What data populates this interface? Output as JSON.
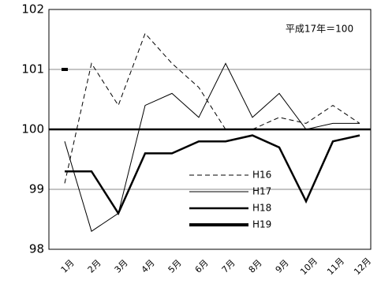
{
  "chart_data": {
    "type": "line",
    "annotation": "平成17年＝100",
    "categories": [
      "1月",
      "2月",
      "3月",
      "4月",
      "5月",
      "6月",
      "7月",
      "8月",
      "9月",
      "10月",
      "11月",
      "12月"
    ],
    "series": [
      {
        "name": "H16",
        "color": "#000000",
        "line_width": 1,
        "dashed": true,
        "values": [
          99.1,
          101.1,
          100.4,
          101.6,
          101.1,
          100.7,
          100.0,
          100.0,
          100.2,
          100.1,
          100.4,
          100.1
        ]
      },
      {
        "name": "H17",
        "color": "#000000",
        "line_width": 1,
        "dashed": false,
        "values": [
          99.8,
          98.3,
          98.6,
          100.4,
          100.6,
          100.2,
          101.1,
          100.2,
          100.6,
          100.0,
          100.1,
          100.1
        ]
      },
      {
        "name": "H18",
        "color": "#000000",
        "line_width": 2.5,
        "dashed": false,
        "values": [
          99.3,
          99.3,
          98.6,
          99.6,
          99.6,
          99.8,
          99.8,
          99.9,
          99.7,
          98.8,
          99.8,
          99.9
        ]
      },
      {
        "name": "H19",
        "color": "#000000",
        "line_width": 4,
        "dashed": false,
        "values": [
          101.0,
          null,
          null,
          null,
          null,
          null,
          null,
          null,
          null,
          null,
          null,
          null
        ]
      }
    ],
    "ylim": [
      98,
      102
    ],
    "yticks": [
      98,
      99,
      100,
      101,
      102
    ],
    "grid": true,
    "hline": 100
  }
}
